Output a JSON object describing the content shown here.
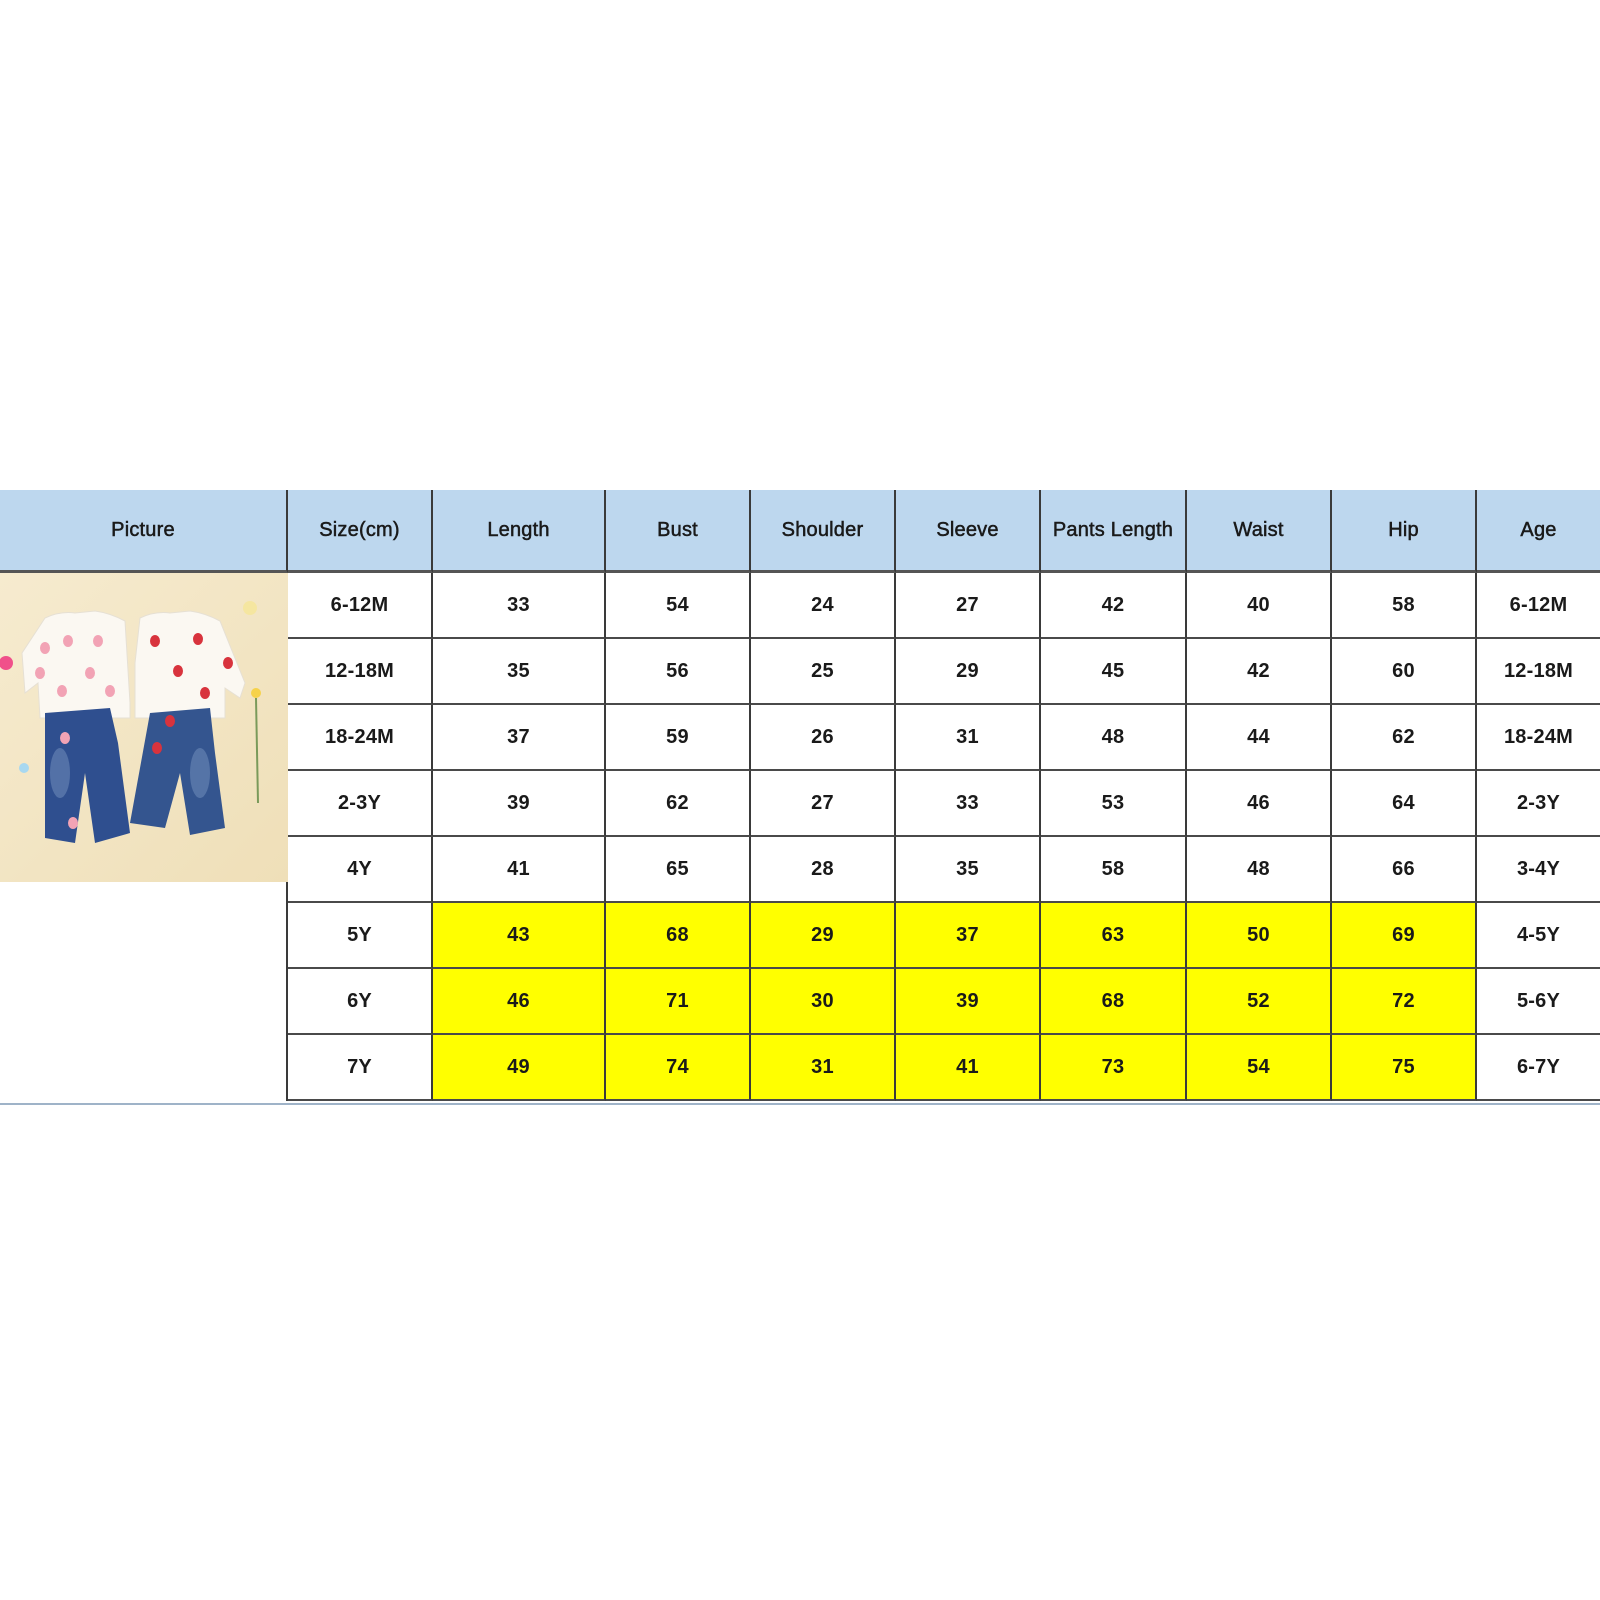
{
  "columns": [
    "Picture",
    "Size(cm)",
    "Length",
    "Bust",
    "Shoulder",
    "Sleeve",
    "Pants Length",
    "Waist",
    "Hip",
    "Age"
  ],
  "rows": [
    {
      "size": "6-12M",
      "length": "33",
      "bust": "54",
      "shoulder": "24",
      "sleeve": "27",
      "pants_length": "42",
      "waist": "40",
      "hip": "58",
      "age": "6-12M",
      "highlighted": false
    },
    {
      "size": "12-18M",
      "length": "35",
      "bust": "56",
      "shoulder": "25",
      "sleeve": "29",
      "pants_length": "45",
      "waist": "42",
      "hip": "60",
      "age": "12-18M",
      "highlighted": false
    },
    {
      "size": "18-24M",
      "length": "37",
      "bust": "59",
      "shoulder": "26",
      "sleeve": "31",
      "pants_length": "48",
      "waist": "44",
      "hip": "62",
      "age": "18-24M",
      "highlighted": false
    },
    {
      "size": "2-3Y",
      "length": "39",
      "bust": "62",
      "shoulder": "27",
      "sleeve": "33",
      "pants_length": "53",
      "waist": "46",
      "hip": "64",
      "age": "2-3Y",
      "highlighted": false
    },
    {
      "size": "4Y",
      "length": "41",
      "bust": "65",
      "shoulder": "28",
      "sleeve": "35",
      "pants_length": "58",
      "waist": "48",
      "hip": "66",
      "age": "3-4Y",
      "highlighted": false
    },
    {
      "size": "5Y",
      "length": "43",
      "bust": "68",
      "shoulder": "29",
      "sleeve": "37",
      "pants_length": "63",
      "waist": "50",
      "hip": "69",
      "age": "4-5Y",
      "highlighted": true
    },
    {
      "size": "6Y",
      "length": "46",
      "bust": "71",
      "shoulder": "30",
      "sleeve": "39",
      "pants_length": "68",
      "waist": "52",
      "hip": "72",
      "age": "5-6Y",
      "highlighted": true
    },
    {
      "size": "7Y",
      "length": "49",
      "bust": "74",
      "shoulder": "31",
      "sleeve": "41",
      "pants_length": "73",
      "waist": "54",
      "hip": "75",
      "age": "6-7Y",
      "highlighted": true
    }
  ],
  "colors": {
    "header_bg": "#bdd7ee",
    "highlight": "#ffff00"
  },
  "picture": {
    "subject": "product-photo-strawberry-sweatshirts-and-flare-jeans"
  }
}
